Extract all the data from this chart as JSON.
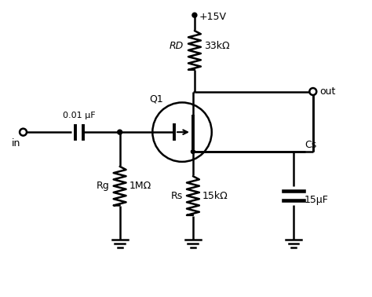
{
  "bg_color": "#ffffff",
  "line_color": "#000000",
  "line_width": 1.8,
  "labels": {
    "in": "in",
    "out": "out",
    "vcc": "+15V",
    "rd_label": "RD",
    "rd_value": "33kΩ",
    "rg_label": "Rg",
    "rg_value": "1MΩ",
    "rs_label": "Rs",
    "rs_value": "15kΩ",
    "cs_label": "Cs",
    "cs_value": "15μF",
    "cap_label": "0.01 μF",
    "q1_label": "Q1"
  }
}
